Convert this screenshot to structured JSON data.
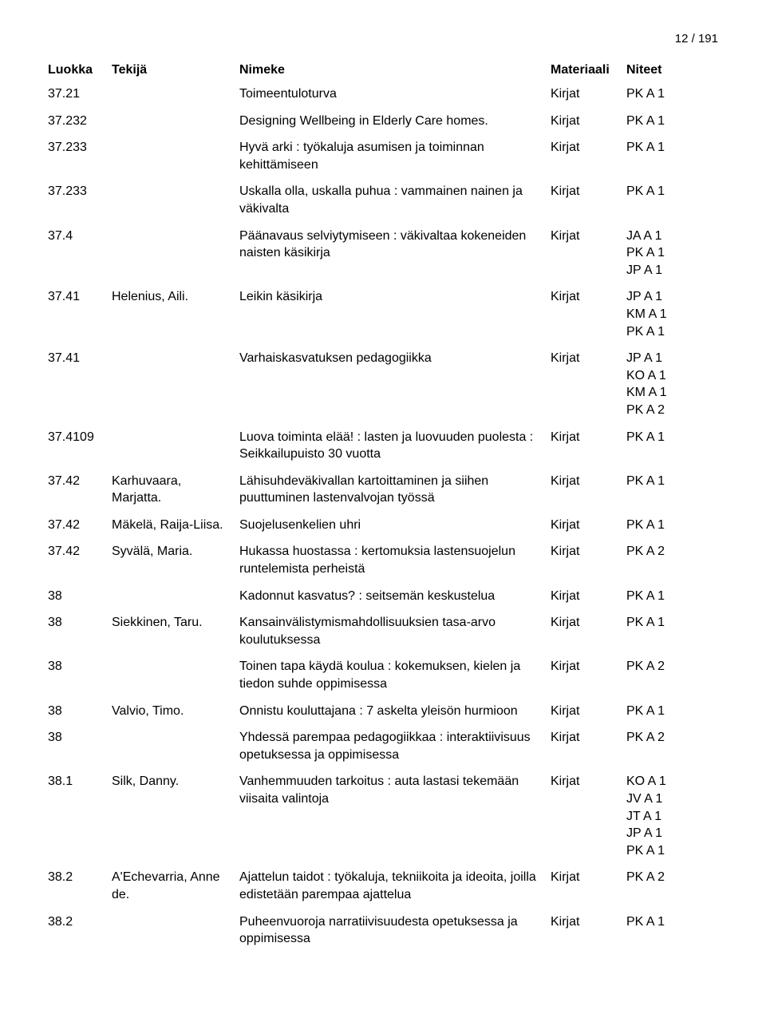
{
  "page_number": "12 / 191",
  "headers": {
    "class": "Luokka",
    "author": "Tekijä",
    "title": "Nimeke",
    "material": "Materiaali",
    "refs": "Niteet"
  },
  "rows": [
    {
      "class": "37.21",
      "author": "",
      "title": "Toimeentuloturva",
      "material": "Kirjat",
      "refs": [
        "PK A 1"
      ]
    },
    {
      "class": "37.232",
      "author": "",
      "title": "Designing Wellbeing in Elderly Care homes.",
      "material": "Kirjat",
      "refs": [
        "PK A 1"
      ]
    },
    {
      "class": "37.233",
      "author": "",
      "title": "Hyvä arki : työkaluja asumisen ja toiminnan kehittämiseen",
      "material": "Kirjat",
      "refs": [
        "PK A 1"
      ]
    },
    {
      "class": "37.233",
      "author": "",
      "title": "Uskalla olla, uskalla puhua : vammainen nainen ja väkivalta",
      "material": "Kirjat",
      "refs": [
        "PK A 1"
      ]
    },
    {
      "class": "37.4",
      "author": "",
      "title": "Päänavaus selviytymiseen : väkivaltaa kokeneiden naisten käsikirja",
      "material": "Kirjat",
      "refs": [
        "JA A 1",
        "PK A 1",
        "JP A 1"
      ]
    },
    {
      "class": "37.41",
      "author": "Helenius, Aili.",
      "title": "Leikin käsikirja",
      "material": "Kirjat",
      "refs": [
        "JP A 1",
        "KM A 1",
        "PK A 1"
      ]
    },
    {
      "class": "37.41",
      "author": "",
      "title": "Varhaiskasvatuksen pedagogiikka",
      "material": "Kirjat",
      "refs": [
        "JP A 1",
        "KO A 1",
        "KM A 1",
        "PK A 2"
      ]
    },
    {
      "class": "37.4109",
      "author": "",
      "title": "Luova toiminta elää! : lasten ja luovuuden puolesta : Seikkailupuisto 30 vuotta",
      "material": "Kirjat",
      "refs": [
        "PK A 1"
      ]
    },
    {
      "class": "37.42",
      "author": "Karhuvaara, Marjatta.",
      "title": "Lähisuhdeväkivallan kartoittaminen ja siihen puuttuminen lastenvalvojan työssä",
      "material": "Kirjat",
      "refs": [
        "PK A 1"
      ]
    },
    {
      "class": "37.42",
      "author": "Mäkelä, Raija-Liisa.",
      "title": "Suojelusenkelien uhri",
      "material": "Kirjat",
      "refs": [
        "PK A 1"
      ]
    },
    {
      "class": "37.42",
      "author": "Syvälä, Maria.",
      "title": "Hukassa huostassa : kertomuksia lastensuojelun runtelemista perheistä",
      "material": "Kirjat",
      "refs": [
        "PK A 2"
      ]
    },
    {
      "class": "38",
      "author": "",
      "title": "Kadonnut kasvatus? : seitsemän keskustelua",
      "material": "Kirjat",
      "refs": [
        "PK A 1"
      ]
    },
    {
      "class": "38",
      "author": "Siekkinen, Taru.",
      "title": "Kansainvälistymismahdollisuuksien tasa-arvo koulutuksessa",
      "material": "Kirjat",
      "refs": [
        "PK A 1"
      ]
    },
    {
      "class": "38",
      "author": "",
      "title": "Toinen tapa käydä koulua : kokemuksen, kielen ja tiedon suhde oppimisessa",
      "material": "Kirjat",
      "refs": [
        "PK A 2"
      ]
    },
    {
      "class": "38",
      "author": "Valvio, Timo.",
      "title": "Onnistu kouluttajana : 7 askelta yleisön hurmioon",
      "material": "Kirjat",
      "refs": [
        "PK A 1"
      ]
    },
    {
      "class": "38",
      "author": "",
      "title": "Yhdessä parempaa pedagogiikkaa : interaktiivisuus opetuksessa ja oppimisessa",
      "material": "Kirjat",
      "refs": [
        "PK A 2"
      ]
    },
    {
      "class": "38.1",
      "author": "Silk, Danny.",
      "title": "Vanhemmuuden tarkoitus : auta lastasi tekemään viisaita valintoja",
      "material": "Kirjat",
      "refs": [
        "KO A 1",
        "JV A 1",
        "JT A 1",
        "JP A 1",
        "PK A 1"
      ]
    },
    {
      "class": "38.2",
      "author": "A'Echevarria, Anne de.",
      "title": "Ajattelun taidot : työkaluja, tekniikoita ja ideoita, joilla edistetään parempaa ajattelua",
      "material": "Kirjat",
      "refs": [
        "PK A 2"
      ]
    },
    {
      "class": "38.2",
      "author": "",
      "title": "Puheenvuoroja narratiivisuudesta opetuksessa ja oppimisessa",
      "material": "Kirjat",
      "refs": [
        "PK A 1"
      ]
    }
  ]
}
